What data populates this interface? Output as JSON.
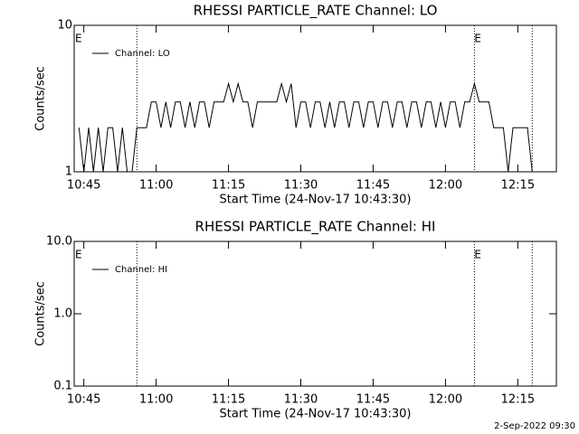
{
  "chart_data": [
    {
      "type": "line",
      "title": "RHESSI PARTICLE_RATE Channel: LO",
      "xlabel": "Start Time (24-Nov-17 10:43:30)",
      "ylabel": "Counts/sec",
      "x": [
        "10:44",
        "10:45",
        "10:46",
        "10:47",
        "10:48",
        "10:49",
        "10:50",
        "10:51",
        "10:52",
        "10:53",
        "10:54",
        "10:55",
        "10:56",
        "10:57",
        "10:58",
        "10:59",
        "11:00",
        "11:01",
        "11:02",
        "11:03",
        "11:04",
        "11:05",
        "11:06",
        "11:07",
        "11:08",
        "11:09",
        "11:10",
        "11:11",
        "11:12",
        "11:13",
        "11:14",
        "11:15",
        "11:16",
        "11:17",
        "11:18",
        "11:19",
        "11:20",
        "11:21",
        "11:22",
        "11:23",
        "11:24",
        "11:25",
        "11:26",
        "11:27",
        "11:28",
        "11:29",
        "11:30",
        "11:31",
        "11:32",
        "11:33",
        "11:34",
        "11:35",
        "11:36",
        "11:37",
        "11:38",
        "11:39",
        "11:40",
        "11:41",
        "11:42",
        "11:43",
        "11:44",
        "11:45",
        "11:46",
        "11:47",
        "11:48",
        "11:49",
        "11:50",
        "11:51",
        "11:52",
        "11:53",
        "11:54",
        "11:55",
        "11:56",
        "11:57",
        "11:58",
        "11:59",
        "12:00",
        "12:01",
        "12:02",
        "12:03",
        "12:04",
        "12:05",
        "12:06",
        "12:07",
        "12:08",
        "12:09",
        "12:10",
        "12:11",
        "12:12",
        "12:13",
        "12:14",
        "12:15",
        "12:16",
        "12:17",
        "12:18",
        "12:19"
      ],
      "series": [
        {
          "name": "Channel: LO",
          "color": "#000000",
          "values": [
            2,
            1,
            2,
            1,
            2,
            1,
            2,
            2,
            1,
            2,
            1,
            1,
            2,
            2,
            2,
            3,
            3,
            2,
            3,
            2,
            3,
            3,
            2,
            3,
            2,
            3,
            3,
            2,
            3,
            3,
            3,
            4,
            3,
            4,
            3,
            3,
            2,
            3,
            3,
            3,
            3,
            3,
            4,
            3,
            4,
            2,
            3,
            3,
            2,
            3,
            3,
            2,
            3,
            2,
            3,
            3,
            2,
            3,
            3,
            2,
            3,
            3,
            2,
            3,
            3,
            2,
            3,
            3,
            2,
            3,
            3,
            2,
            3,
            3,
            2,
            3,
            2,
            3,
            3,
            2,
            3,
            3,
            4,
            3,
            3,
            3,
            2,
            2,
            2,
            1,
            2,
            2,
            2,
            2,
            1,
            1
          ]
        }
      ],
      "xlim": [
        "10:43",
        "12:23"
      ],
      "xticks": [
        "10:45",
        "11:00",
        "11:15",
        "11:30",
        "11:45",
        "12:00",
        "12:15"
      ],
      "ylim": [
        1,
        10
      ],
      "yticks": [
        1,
        10
      ],
      "log_y": true,
      "vlines": [
        "10:56",
        "12:06",
        "12:18"
      ],
      "annotations": [
        {
          "x": "10:43",
          "text": "E"
        },
        {
          "x": "12:06",
          "text": "E"
        }
      ]
    },
    {
      "type": "line",
      "title": "RHESSI PARTICLE_RATE Channel: HI",
      "xlabel": "Start Time (24-Nov-17 10:43:30)",
      "ylabel": "Counts/sec",
      "x": [],
      "series": [
        {
          "name": "Channel: HI",
          "color": "#000000",
          "values": []
        }
      ],
      "xlim": [
        "10:43",
        "12:23"
      ],
      "xticks": [
        "10:45",
        "11:00",
        "11:15",
        "11:30",
        "11:45",
        "12:00",
        "12:15"
      ],
      "ylim": [
        0.1,
        10
      ],
      "yticks": [
        0.1,
        {
          "value": 1,
          "label": "1.0"
        },
        {
          "value": 10,
          "label": "10.0"
        }
      ],
      "log_y": true,
      "vlines": [
        "10:56",
        "12:06",
        "12:18"
      ],
      "annotations": [
        {
          "x": "10:43",
          "text": "E"
        },
        {
          "x": "12:06",
          "text": "E"
        }
      ]
    }
  ],
  "footer": "2-Sep-2022 09:30"
}
